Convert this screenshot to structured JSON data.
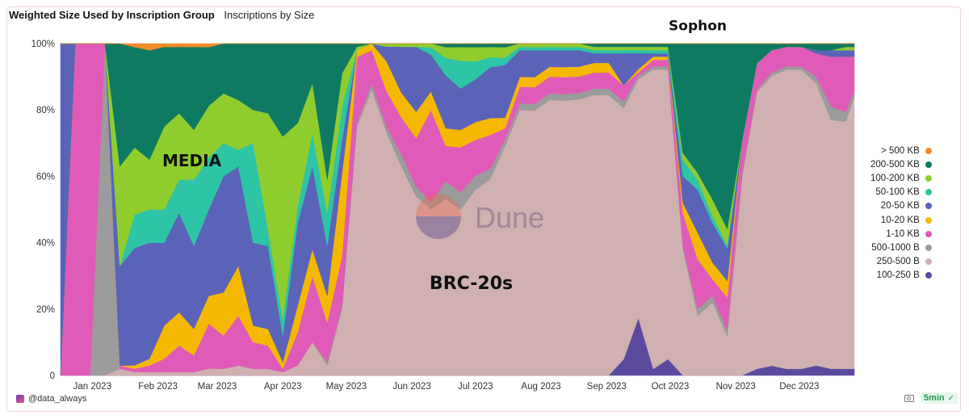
{
  "header": {
    "title": "Weighted Size Used by Inscription Group",
    "subtitle": "Inscriptions by Size"
  },
  "footer": {
    "author": "@data_always",
    "refresh_badge": "5min",
    "camera_icon": "camera-icon",
    "check_icon": "check-circle-icon"
  },
  "watermark": "Dune",
  "chart_data": {
    "type": "area",
    "stacked": "percent",
    "title": "Weighted Size Used by Inscription Group",
    "xlabel": "",
    "ylabel": "",
    "ylim": [
      0,
      100
    ],
    "y_ticks": [
      "0",
      "20%",
      "40%",
      "60%",
      "80%",
      "100%"
    ],
    "x_ticks": [
      {
        "label": "Jan 2023",
        "date": "2023-01-01"
      },
      {
        "label": "Feb 2023",
        "date": "2023-02-01"
      },
      {
        "label": "Mar 2023",
        "date": "2023-03-01"
      },
      {
        "label": "Apr 2023",
        "date": "2023-04-01"
      },
      {
        "label": "May 2023",
        "date": "2023-05-01"
      },
      {
        "label": "Jun 2023",
        "date": "2023-06-01"
      },
      {
        "label": "Jul 2023",
        "date": "2023-07-01"
      },
      {
        "label": "Aug 2023",
        "date": "2023-08-01"
      },
      {
        "label": "Sep 2023",
        "date": "2023-09-01"
      },
      {
        "label": "Oct 2023",
        "date": "2023-10-01"
      },
      {
        "label": "Nov 2023",
        "date": "2023-11-01"
      },
      {
        "label": "Dec 2023",
        "date": "2023-12-01"
      }
    ],
    "x_range": [
      "2022-12-17",
      "2023-12-27"
    ],
    "x": [
      "2022-12-17",
      "2022-12-24",
      "2022-12-31",
      "2023-01-07",
      "2023-01-14",
      "2023-01-21",
      "2023-01-28",
      "2023-02-04",
      "2023-02-11",
      "2023-02-18",
      "2023-02-25",
      "2023-03-04",
      "2023-03-11",
      "2023-03-18",
      "2023-03-25",
      "2023-04-01",
      "2023-04-08",
      "2023-04-15",
      "2023-04-22",
      "2023-04-29",
      "2023-05-06",
      "2023-05-13",
      "2023-05-20",
      "2023-05-27",
      "2023-06-03",
      "2023-06-10",
      "2023-06-17",
      "2023-06-24",
      "2023-07-01",
      "2023-07-08",
      "2023-07-15",
      "2023-07-22",
      "2023-07-29",
      "2023-08-05",
      "2023-08-12",
      "2023-08-19",
      "2023-08-26",
      "2023-09-02",
      "2023-09-09",
      "2023-09-16",
      "2023-09-23",
      "2023-09-30",
      "2023-10-07",
      "2023-10-14",
      "2023-10-21",
      "2023-10-28",
      "2023-11-04",
      "2023-11-11",
      "2023-11-18",
      "2023-11-25",
      "2023-12-02",
      "2023-12-09",
      "2023-12-16",
      "2023-12-23",
      "2023-12-27"
    ],
    "legend_position": "right",
    "series": [
      {
        "name": "100-250 B",
        "color": "#5b4a9e",
        "values": [
          0,
          0,
          0,
          0,
          0,
          0,
          0,
          0,
          0,
          0,
          0,
          0,
          0,
          0,
          0,
          0,
          0,
          0,
          0,
          0,
          0,
          0,
          0,
          0,
          0,
          0,
          0,
          0,
          0,
          0,
          0,
          0,
          0,
          0,
          0,
          0,
          0,
          0,
          5,
          18,
          2,
          5,
          0,
          0,
          0,
          0,
          0,
          2,
          3,
          2,
          2,
          3,
          2,
          2,
          2
        ]
      },
      {
        "name": "250-500 B",
        "color": "#d0b0b0",
        "values": [
          0,
          0,
          0,
          0,
          2,
          1,
          1,
          1,
          1,
          1,
          2,
          2,
          3,
          2,
          2,
          1,
          3,
          10,
          3,
          20,
          75,
          86,
          82,
          68,
          55,
          45,
          50,
          48,
          52,
          58,
          65,
          80,
          79,
          83,
          82,
          84,
          87,
          87,
          78,
          75,
          92,
          89,
          38,
          18,
          22,
          12,
          60,
          85,
          90,
          92,
          91,
          85,
          75,
          76,
          82
        ]
      },
      {
        "name": "500-1000 B",
        "color": "#9b9b9b",
        "values": [
          0,
          0,
          0,
          100,
          0,
          0,
          0,
          0,
          0,
          0,
          0,
          0,
          0,
          0,
          0,
          0,
          0,
          0,
          1,
          1,
          1,
          2,
          2,
          4,
          3,
          2,
          5,
          5,
          4,
          3,
          2,
          2,
          2,
          2,
          2,
          2,
          2,
          2,
          2,
          1,
          1,
          1,
          1,
          2,
          2,
          2,
          1,
          1,
          1,
          1,
          1,
          2,
          4,
          3,
          2
        ]
      },
      {
        "name": "1-10 KB",
        "color": "#e05bb8",
        "values": [
          0,
          100,
          100,
          0,
          1,
          1,
          2,
          4,
          8,
          5,
          13,
          10,
          15,
          8,
          7,
          1,
          10,
          20,
          12,
          15,
          20,
          10,
          12,
          12,
          15,
          25,
          10,
          13,
          10,
          10,
          3,
          5,
          5,
          5,
          5,
          5,
          5,
          5,
          5,
          1,
          2,
          2,
          10,
          15,
          5,
          10,
          10,
          8,
          7,
          6,
          6,
          7,
          15,
          17,
          10
        ]
      },
      {
        "name": "10-20 KB",
        "color": "#f5b800",
        "values": [
          0,
          0,
          0,
          0,
          0,
          1,
          2,
          10,
          10,
          8,
          8,
          13,
          15,
          5,
          5,
          2,
          8,
          8,
          8,
          25,
          2,
          2,
          10,
          8,
          8,
          5,
          5,
          5,
          5,
          5,
          3,
          3,
          3,
          3,
          3,
          3,
          3,
          3,
          0,
          1,
          1,
          1,
          3,
          8,
          5,
          5,
          0,
          0,
          0,
          0,
          0,
          0,
          0,
          0,
          0
        ]
      },
      {
        "name": "20-50 KB",
        "color": "#5b63b8",
        "values": [
          100,
          0,
          0,
          0,
          30,
          35,
          35,
          25,
          30,
          25,
          25,
          35,
          30,
          25,
          25,
          8,
          25,
          25,
          15,
          10,
          0,
          0,
          5,
          15,
          20,
          10,
          15,
          12,
          12,
          15,
          15,
          8,
          8,
          5,
          5,
          5,
          3,
          3,
          10,
          5,
          1,
          1,
          8,
          13,
          12,
          10,
          0,
          0,
          0,
          0,
          0,
          1,
          2,
          2,
          2
        ]
      },
      {
        "name": "50-100 KB",
        "color": "#2ec4a6",
        "values": [
          0,
          0,
          0,
          0,
          0,
          10,
          10,
          10,
          10,
          20,
          15,
          10,
          5,
          30,
          5,
          5,
          5,
          10,
          10,
          10,
          0,
          0,
          0,
          0,
          0,
          2,
          5,
          8,
          5,
          3,
          2,
          1,
          1,
          1,
          1,
          1,
          1,
          1,
          1,
          1,
          1,
          1,
          5,
          3,
          2,
          1,
          0,
          0,
          0,
          0,
          0,
          0,
          0,
          0,
          0
        ]
      },
      {
        "name": "100-200 KB",
        "color": "#8fcc2e",
        "values": [
          0,
          0,
          0,
          0,
          30,
          20,
          15,
          25,
          20,
          15,
          15,
          15,
          15,
          10,
          35,
          55,
          25,
          15,
          10,
          10,
          1,
          0,
          1,
          1,
          1,
          1,
          3,
          4,
          4,
          3,
          3,
          1,
          1,
          1,
          1,
          1,
          1,
          1,
          1,
          1,
          1,
          1,
          2,
          2,
          5,
          5,
          0,
          0,
          0,
          0,
          0,
          0,
          0,
          1,
          1
        ]
      },
      {
        "name": "200-500 KB",
        "color": "#0f7a62",
        "values": [
          0,
          0,
          0,
          0,
          37,
          30,
          33,
          24,
          20,
          25,
          17,
          15,
          17,
          20,
          21,
          28,
          24,
          12,
          41,
          9,
          1,
          0,
          0,
          0,
          0,
          0,
          1,
          1,
          1,
          1,
          1,
          0,
          0,
          0,
          0,
          0,
          1,
          1,
          1,
          1,
          1,
          1,
          33,
          39,
          47,
          57,
          29,
          6,
          2,
          1,
          1,
          2,
          2,
          1,
          1
        ]
      },
      {
        "name": "> 500 KB",
        "color": "#f28c28",
        "values": [
          0,
          0,
          0,
          0,
          0,
          1,
          2,
          1,
          1,
          1,
          1,
          0,
          0,
          0,
          0,
          0,
          0,
          0,
          0,
          0,
          0,
          0,
          0,
          0,
          0,
          0,
          0,
          0,
          0,
          0,
          0,
          0,
          0,
          0,
          0,
          0,
          0,
          0,
          0,
          0,
          0,
          0,
          0,
          0,
          0,
          0,
          0,
          0,
          0,
          0,
          0,
          0,
          0,
          0,
          0
        ]
      }
    ],
    "legend_order": [
      "> 500 KB",
      "200-500 KB",
      "100-200 KB",
      "50-100 KB",
      "20-50 KB",
      "10-20 KB",
      "1-10 KB",
      "500-1000 B",
      "250-500 B",
      "100-250 B"
    ],
    "annotations": [
      {
        "text": "MEDIA",
        "date": "2023-02-17",
        "y": 63,
        "size": 20
      },
      {
        "text": "BRC-20s",
        "date": "2023-06-29",
        "y": 26,
        "size": 22
      },
      {
        "text": "Sophon",
        "date": "2023-10-14",
        "y": 104,
        "size": 17
      }
    ]
  }
}
